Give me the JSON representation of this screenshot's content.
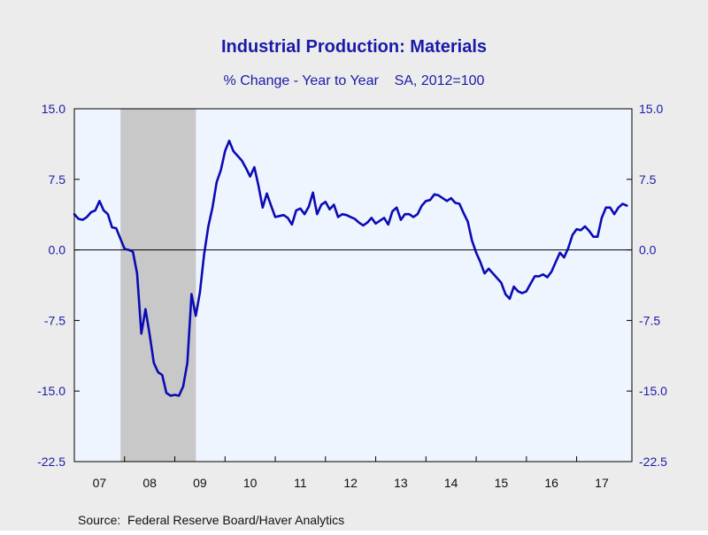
{
  "chart_data": {
    "type": "line",
    "title": "Industrial Production: Materials",
    "subtitle": "% Change - Year to Year    SA, 2012=100",
    "source": "Source:  Federal Reserve Board/Haver Analytics",
    "xlabel": "",
    "ylabel": "",
    "ylim": [
      -22.5,
      15.0
    ],
    "xlim": [
      2007.0,
      2018.1
    ],
    "y_ticks": [
      "15.0",
      "7.5",
      "0.0",
      "-7.5",
      "-15.0",
      "-22.5"
    ],
    "y_tick_values": [
      15.0,
      7.5,
      0.0,
      -7.5,
      -15.0,
      -22.5
    ],
    "x_tick_labels": [
      "07",
      "08",
      "09",
      "10",
      "11",
      "12",
      "13",
      "14",
      "15",
      "16",
      "17"
    ],
    "x_tick_years": [
      2007,
      2008,
      2009,
      2010,
      2011,
      2012,
      2013,
      2014,
      2015,
      2016,
      2017
    ],
    "zero_line": true,
    "grid": false,
    "legend": "none",
    "shaded_periods": [
      {
        "start": 2007.92,
        "end": 2009.42,
        "label": "recession"
      }
    ],
    "series": [
      {
        "color": "#0b0bb4",
        "x": [
          2007.0,
          2007.083,
          2007.167,
          2007.25,
          2007.333,
          2007.417,
          2007.5,
          2007.583,
          2007.667,
          2007.75,
          2007.833,
          2007.917,
          2008.0,
          2008.083,
          2008.167,
          2008.25,
          2008.333,
          2008.417,
          2008.5,
          2008.583,
          2008.667,
          2008.75,
          2008.833,
          2008.917,
          2009.0,
          2009.083,
          2009.167,
          2009.25,
          2009.333,
          2009.417,
          2009.5,
          2009.583,
          2009.667,
          2009.75,
          2009.833,
          2009.917,
          2010.0,
          2010.083,
          2010.167,
          2010.25,
          2010.333,
          2010.417,
          2010.5,
          2010.583,
          2010.667,
          2010.75,
          2010.833,
          2010.917,
          2011.0,
          2011.083,
          2011.167,
          2011.25,
          2011.333,
          2011.417,
          2011.5,
          2011.583,
          2011.667,
          2011.75,
          2011.833,
          2011.917,
          2012.0,
          2012.083,
          2012.167,
          2012.25,
          2012.333,
          2012.417,
          2012.5,
          2012.583,
          2012.667,
          2012.75,
          2012.833,
          2012.917,
          2013.0,
          2013.083,
          2013.167,
          2013.25,
          2013.333,
          2013.417,
          2013.5,
          2013.583,
          2013.667,
          2013.75,
          2013.833,
          2013.917,
          2014.0,
          2014.083,
          2014.167,
          2014.25,
          2014.333,
          2014.417,
          2014.5,
          2014.583,
          2014.667,
          2014.75,
          2014.833,
          2014.917,
          2015.0,
          2015.083,
          2015.167,
          2015.25,
          2015.333,
          2015.417,
          2015.5,
          2015.583,
          2015.667,
          2015.75,
          2015.833,
          2015.917,
          2016.0,
          2016.083,
          2016.167,
          2016.25,
          2016.333,
          2016.417,
          2016.5,
          2016.583,
          2016.667,
          2016.75,
          2016.833,
          2016.917,
          2017.0,
          2017.083,
          2017.167,
          2017.25,
          2017.333,
          2017.417,
          2017.5,
          2017.583,
          2017.667,
          2017.75,
          2017.833,
          2017.917,
          2018.0
        ],
        "values": [
          3.8,
          3.3,
          3.2,
          3.5,
          4.0,
          4.2,
          5.2,
          4.2,
          3.8,
          2.4,
          2.3,
          1.2,
          0.1,
          0.0,
          -0.2,
          -2.5,
          -8.9,
          -6.3,
          -9.0,
          -12.0,
          -13.0,
          -13.3,
          -15.2,
          -15.5,
          -15.4,
          -15.5,
          -14.5,
          -12.0,
          -4.7,
          -7.0,
          -4.5,
          -0.5,
          2.5,
          4.5,
          7.2,
          8.5,
          10.5,
          11.6,
          10.5,
          10.0,
          9.5,
          8.7,
          7.8,
          8.8,
          6.8,
          4.5,
          6.0,
          4.7,
          3.5,
          3.6,
          3.7,
          3.4,
          2.7,
          4.2,
          4.4,
          3.8,
          4.6,
          6.1,
          3.8,
          4.8,
          5.1,
          4.3,
          4.8,
          3.5,
          3.8,
          3.7,
          3.5,
          3.3,
          2.9,
          2.6,
          2.9,
          3.4,
          2.8,
          3.1,
          3.4,
          2.7,
          4.1,
          4.5,
          3.2,
          3.8,
          3.8,
          3.5,
          3.8,
          4.7,
          5.2,
          5.3,
          5.9,
          5.8,
          5.5,
          5.2,
          5.5,
          5.0,
          4.9,
          3.9,
          3.0,
          1.0,
          -0.3,
          -1.3,
          -2.5,
          -2.0,
          -2.5,
          -3.0,
          -3.5,
          -4.7,
          -5.2,
          -3.9,
          -4.4,
          -4.6,
          -4.4,
          -3.6,
          -2.8,
          -2.8,
          -2.6,
          -2.9,
          -2.3,
          -1.3,
          -0.3,
          -0.8,
          0.2,
          1.6,
          2.2,
          2.1,
          2.5,
          2.0,
          1.4,
          1.4,
          3.4,
          4.5,
          4.5,
          3.8,
          4.5,
          4.9,
          4.7
        ]
      }
    ]
  }
}
